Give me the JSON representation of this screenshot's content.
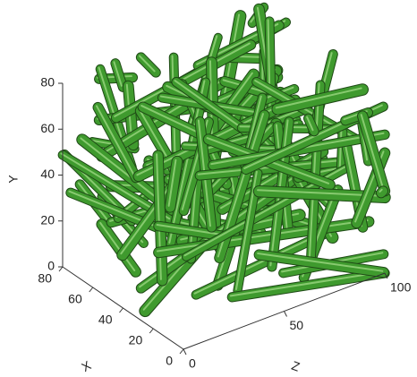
{
  "chart_data": {
    "type": "isosurface",
    "xlabel": "X",
    "ylabel": "Y",
    "zlabel": "Z",
    "xlim": [
      0,
      80
    ],
    "ylim": [
      0,
      80
    ],
    "zlim": [
      0,
      100
    ],
    "xticks": [
      0,
      20,
      40,
      60,
      80
    ],
    "yticks": [
      0,
      20,
      40,
      60,
      80
    ],
    "zticks": [
      0,
      50,
      100
    ],
    "color": "#3f9a2e"
  }
}
